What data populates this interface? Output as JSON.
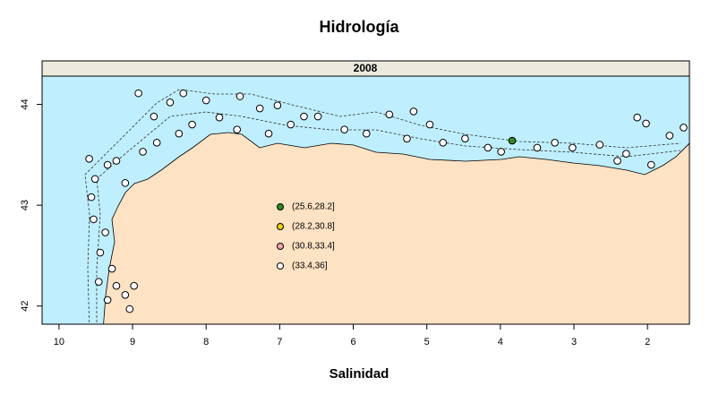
{
  "chart_data": {
    "type": "scatter",
    "title": "Hidrología",
    "panel_label": "2008",
    "x_label": "Salinidad",
    "xlim": [
      10.23,
      1.43
    ],
    "ylim": [
      41.82,
      44.28
    ],
    "xticks": [
      10,
      9,
      8,
      7,
      6,
      5,
      4,
      3,
      2
    ],
    "yticks": [
      42,
      43,
      44
    ],
    "series": [
      {
        "name": "(25.6,28.2]",
        "color": "#2e8b22",
        "x": [
          3.84
        ],
        "values": [
          43.64
        ]
      },
      {
        "name": "(28.2,30.8]",
        "color": "#f0d000",
        "x": [],
        "values": []
      },
      {
        "name": "(30.8,33.4]",
        "color": "#f2a6a6",
        "x": [],
        "values": []
      },
      {
        "name": "(33.4,36]",
        "color": "#ffffff",
        "x": [
          8.92,
          8.71,
          8.49,
          8.31,
          8.0,
          7.54,
          7.27,
          7.03,
          6.67,
          6.48,
          7.15,
          7.58,
          6.12,
          5.51,
          5.18,
          4.96,
          4.48,
          4.17,
          3.5,
          3.02,
          2.65,
          2.29,
          2.14,
          2.02,
          1.7,
          1.51,
          1.95,
          9.59,
          9.34,
          9.22,
          9.1,
          9.51,
          9.56,
          9.53,
          9.37,
          9.44,
          9.28,
          9.46,
          9.22,
          9.1,
          9.34,
          8.98,
          9.04,
          8.86,
          8.67,
          8.37,
          8.19,
          7.82,
          6.85,
          5.82,
          5.27,
          4.78,
          3.99,
          3.26,
          2.41
        ],
        "values": [
          44.11,
          43.88,
          44.02,
          44.11,
          44.04,
          44.08,
          43.96,
          43.99,
          43.88,
          43.88,
          43.71,
          43.75,
          43.75,
          43.9,
          43.93,
          43.8,
          43.66,
          43.57,
          43.57,
          43.57,
          43.6,
          43.51,
          43.87,
          43.81,
          43.69,
          43.77,
          43.4,
          43.46,
          43.4,
          43.44,
          43.22,
          43.26,
          43.08,
          42.86,
          42.73,
          42.53,
          42.37,
          42.24,
          42.2,
          42.11,
          42.06,
          42.2,
          41.97,
          43.53,
          43.62,
          43.71,
          43.8,
          43.87,
          43.8,
          43.71,
          43.66,
          43.62,
          43.53,
          43.62,
          43.44
        ]
      }
    ]
  }
}
